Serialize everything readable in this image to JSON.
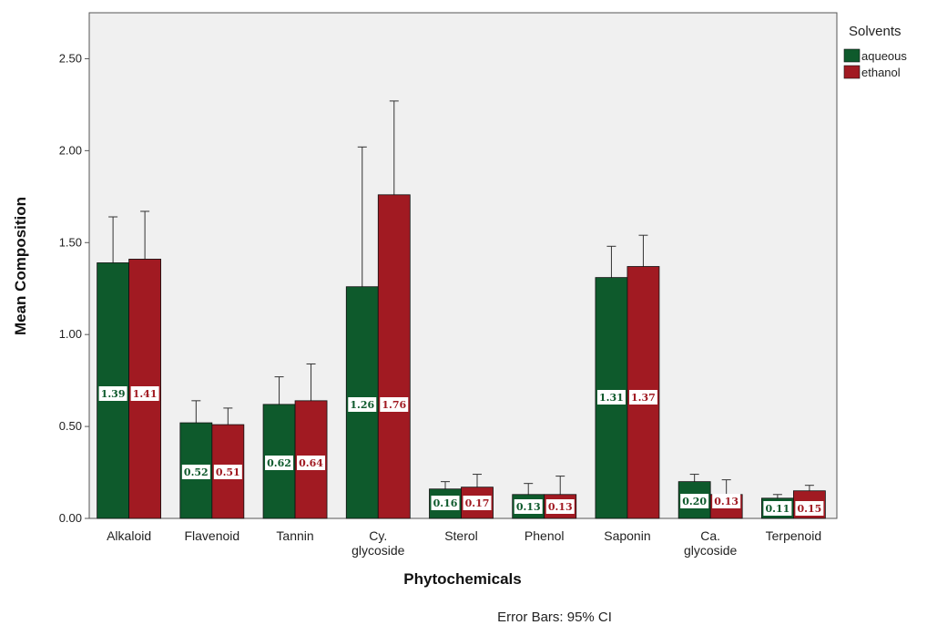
{
  "chart_data": {
    "type": "bar",
    "xlabel": "Phytochemicals",
    "ylabel": "Mean Composition",
    "categories": [
      "Alkaloid",
      "Flavenoid",
      "Tannin",
      "Cy. glycoside",
      "Sterol",
      "Phenol",
      "Saponin",
      "Ca. glycoside",
      "Terpenoid"
    ],
    "ylim": [
      0,
      2.75
    ],
    "yticks": [
      "0.00",
      "0.50",
      "1.00",
      "1.50",
      "2.00",
      "2.50"
    ],
    "legend": {
      "title": "Solvents",
      "position": "right-top"
    },
    "series": [
      {
        "name": "aqueous",
        "color": "#0e5a2c",
        "values": [
          1.39,
          0.52,
          0.62,
          1.26,
          0.16,
          0.13,
          1.31,
          0.2,
          0.11
        ],
        "labels": [
          "1.39",
          "0.52",
          "0.62",
          "1.26",
          "0.16",
          "0.13",
          "1.31",
          "0.20",
          "0.11"
        ],
        "ci_upper": [
          1.64,
          0.64,
          0.77,
          2.02,
          0.2,
          0.19,
          1.48,
          0.24,
          0.13
        ]
      },
      {
        "name": "ethanol",
        "color": "#a11a22",
        "values": [
          1.41,
          0.51,
          0.64,
          1.76,
          0.17,
          0.13,
          1.37,
          0.13,
          0.15
        ],
        "labels": [
          "1.41",
          "0.51",
          "0.64",
          "1.76",
          "0.17",
          "0.13",
          "1.37",
          "0.13",
          "0.15"
        ],
        "ci_upper": [
          1.67,
          0.6,
          0.84,
          2.27,
          0.24,
          0.23,
          1.54,
          0.21,
          0.18
        ]
      }
    ],
    "note": "Error Bars: 95% CI",
    "background": "#f0f0f0",
    "grid": false
  }
}
